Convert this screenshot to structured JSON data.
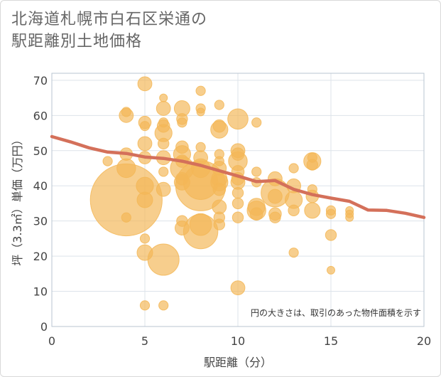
{
  "title_lines": [
    "北海道札幌市白石区栄通の",
    "駅距離別土地価格"
  ],
  "note": "円の大きさは、取引のあった物件面積を示す",
  "colors": {
    "bubble": "#f3b757",
    "line": "#d4705a",
    "grid": "#dde3ea",
    "plot_border": "#b8c4d0"
  },
  "chart_data": {
    "type": "scatter",
    "xlabel": "駅距離（分）",
    "ylabel": "坪（3.3㎡）単価（万円）",
    "xlim": [
      0,
      20
    ],
    "ylim": [
      0,
      72
    ],
    "xticks": [
      0,
      5,
      10,
      15,
      20
    ],
    "yticks": [
      0,
      10,
      20,
      30,
      40,
      50,
      60,
      70
    ],
    "grid": true,
    "bubbles": [
      {
        "x": 3,
        "y": 47,
        "s": 6
      },
      {
        "x": 4,
        "y": 36,
        "s": 46
      },
      {
        "x": 4,
        "y": 60,
        "s": 9
      },
      {
        "x": 4,
        "y": 61,
        "s": 6
      },
      {
        "x": 4,
        "y": 49,
        "s": 8
      },
      {
        "x": 4,
        "y": 45,
        "s": 12
      },
      {
        "x": 4,
        "y": 31,
        "s": 6
      },
      {
        "x": 5,
        "y": 69,
        "s": 9
      },
      {
        "x": 5,
        "y": 58,
        "s": 8
      },
      {
        "x": 5,
        "y": 57,
        "s": 6
      },
      {
        "x": 5,
        "y": 52,
        "s": 9
      },
      {
        "x": 5,
        "y": 48,
        "s": 8
      },
      {
        "x": 5,
        "y": 40,
        "s": 11
      },
      {
        "x": 5,
        "y": 36,
        "s": 10
      },
      {
        "x": 5,
        "y": 25,
        "s": 6
      },
      {
        "x": 5,
        "y": 21,
        "s": 10
      },
      {
        "x": 5,
        "y": 6,
        "s": 6
      },
      {
        "x": 6,
        "y": 65,
        "s": 5
      },
      {
        "x": 6,
        "y": 62,
        "s": 9
      },
      {
        "x": 6,
        "y": 58,
        "s": 6
      },
      {
        "x": 6,
        "y": 57,
        "s": 8
      },
      {
        "x": 6,
        "y": 55,
        "s": 11
      },
      {
        "x": 6,
        "y": 52,
        "s": 7
      },
      {
        "x": 6,
        "y": 48,
        "s": 9
      },
      {
        "x": 6,
        "y": 44,
        "s": 6
      },
      {
        "x": 6,
        "y": 39,
        "s": 9
      },
      {
        "x": 6,
        "y": 19,
        "s": 20
      },
      {
        "x": 6,
        "y": 6,
        "s": 6
      },
      {
        "x": 7,
        "y": 62,
        "s": 10
      },
      {
        "x": 7,
        "y": 59,
        "s": 7
      },
      {
        "x": 7,
        "y": 58,
        "s": 6
      },
      {
        "x": 7,
        "y": 51,
        "s": 8
      },
      {
        "x": 7,
        "y": 49,
        "s": 11
      },
      {
        "x": 7,
        "y": 47,
        "s": 8
      },
      {
        "x": 7,
        "y": 45,
        "s": 15
      },
      {
        "x": 7,
        "y": 42,
        "s": 8
      },
      {
        "x": 7,
        "y": 41,
        "s": 10
      },
      {
        "x": 7,
        "y": 30,
        "s": 7
      },
      {
        "x": 7,
        "y": 28,
        "s": 9
      },
      {
        "x": 8,
        "y": 67,
        "s": 6
      },
      {
        "x": 8,
        "y": 62,
        "s": 6
      },
      {
        "x": 8,
        "y": 61,
        "s": 5
      },
      {
        "x": 8,
        "y": 51,
        "s": 6
      },
      {
        "x": 8,
        "y": 48,
        "s": 9
      },
      {
        "x": 8,
        "y": 45,
        "s": 12
      },
      {
        "x": 8,
        "y": 40,
        "s": 32
      },
      {
        "x": 8,
        "y": 41,
        "s": 22
      },
      {
        "x": 8,
        "y": 29,
        "s": 14
      },
      {
        "x": 8,
        "y": 27,
        "s": 22
      },
      {
        "x": 9,
        "y": 63,
        "s": 6
      },
      {
        "x": 9,
        "y": 57,
        "s": 8
      },
      {
        "x": 9,
        "y": 56,
        "s": 11
      },
      {
        "x": 9,
        "y": 49,
        "s": 6
      },
      {
        "x": 9,
        "y": 47,
        "s": 6
      },
      {
        "x": 9,
        "y": 45,
        "s": 9
      },
      {
        "x": 9,
        "y": 42,
        "s": 10
      },
      {
        "x": 9,
        "y": 41,
        "s": 11
      },
      {
        "x": 9,
        "y": 39,
        "s": 8
      },
      {
        "x": 9,
        "y": 34,
        "s": 9
      },
      {
        "x": 9,
        "y": 31,
        "s": 7
      },
      {
        "x": 9,
        "y": 29,
        "s": 7
      },
      {
        "x": 10,
        "y": 59,
        "s": 13
      },
      {
        "x": 10,
        "y": 50,
        "s": 9
      },
      {
        "x": 10,
        "y": 49,
        "s": 8
      },
      {
        "x": 10,
        "y": 47,
        "s": 12
      },
      {
        "x": 10,
        "y": 44,
        "s": 8
      },
      {
        "x": 10,
        "y": 42,
        "s": 8
      },
      {
        "x": 10,
        "y": 41,
        "s": 9
      },
      {
        "x": 10,
        "y": 38,
        "s": 7
      },
      {
        "x": 10,
        "y": 35,
        "s": 7
      },
      {
        "x": 10,
        "y": 31,
        "s": 7
      },
      {
        "x": 10,
        "y": 11,
        "s": 9
      },
      {
        "x": 11,
        "y": 58,
        "s": 6
      },
      {
        "x": 11,
        "y": 44,
        "s": 6
      },
      {
        "x": 11,
        "y": 41,
        "s": 6
      },
      {
        "x": 11,
        "y": 34,
        "s": 11
      },
      {
        "x": 11,
        "y": 33,
        "s": 12
      },
      {
        "x": 11,
        "y": 32,
        "s": 8
      },
      {
        "x": 12,
        "y": 42,
        "s": 9
      },
      {
        "x": 12,
        "y": 38,
        "s": 18
      },
      {
        "x": 12,
        "y": 37,
        "s": 9
      },
      {
        "x": 12,
        "y": 32,
        "s": 8
      },
      {
        "x": 12,
        "y": 31,
        "s": 7
      },
      {
        "x": 13,
        "y": 45,
        "s": 6
      },
      {
        "x": 13,
        "y": 40,
        "s": 9
      },
      {
        "x": 13,
        "y": 36,
        "s": 11
      },
      {
        "x": 13,
        "y": 33,
        "s": 7
      },
      {
        "x": 13,
        "y": 21,
        "s": 6
      },
      {
        "x": 14,
        "y": 48,
        "s": 6
      },
      {
        "x": 14,
        "y": 47,
        "s": 11
      },
      {
        "x": 14,
        "y": 46,
        "s": 7
      },
      {
        "x": 14,
        "y": 39,
        "s": 6
      },
      {
        "x": 14,
        "y": 37,
        "s": 8
      },
      {
        "x": 14,
        "y": 33,
        "s": 10
      },
      {
        "x": 15,
        "y": 33,
        "s": 6
      },
      {
        "x": 15,
        "y": 32,
        "s": 6
      },
      {
        "x": 15,
        "y": 26,
        "s": 7
      },
      {
        "x": 15,
        "y": 16,
        "s": 5
      },
      {
        "x": 16,
        "y": 33,
        "s": 5
      },
      {
        "x": 16,
        "y": 32,
        "s": 5
      },
      {
        "x": 16,
        "y": 31,
        "s": 5
      }
    ],
    "trend": {
      "x": [
        0,
        1,
        2,
        3,
        4,
        5,
        6,
        7,
        8,
        9,
        10,
        11,
        12,
        13,
        14,
        15,
        16,
        17,
        18,
        19,
        20
      ],
      "y": [
        54,
        52.5,
        50.8,
        49.6,
        49.2,
        48.2,
        47.8,
        47,
        45.8,
        44.3,
        42.8,
        41.2,
        41.5,
        39,
        37.5,
        36.5,
        35.6,
        33.1,
        33,
        32.2,
        31
      ]
    }
  }
}
